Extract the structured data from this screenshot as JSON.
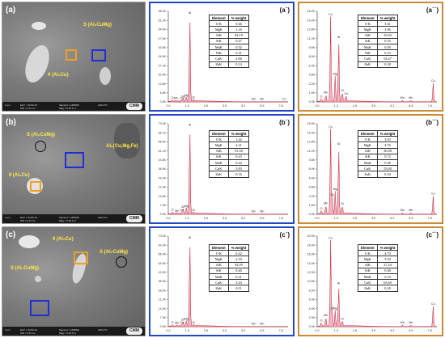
{
  "rows": [
    {
      "sem": {
        "label": "(a)",
        "annotations": [
          "S (Al₂CuMg)",
          "θ (Al₂Cu)"
        ],
        "footer": {
          "scale": "2 µm",
          "eht": "EHT = 20.00 kV",
          "wd": "WD = 9.5 mm",
          "signal": "Signal A = HDBSD",
          "mag": "Mag = 5.00 K X",
          "date": "2024-TS",
          "logo": "CMM"
        }
      },
      "spectrum_mid": {
        "label": "(a´)",
        "y_ticks": [
          "68.0K",
          "61.2K",
          "54.4K",
          "47.6K",
          "40.8K",
          "34.0K",
          "27.2K",
          "20.4K",
          "13.6K",
          "6.8K",
          "0.0K"
        ],
        "x_ticks": [
          "0.0",
          "1.3",
          "2.6",
          "3.9",
          "5.2",
          "6.5",
          "7.8"
        ],
        "peaks": [
          {
            "x": 0.28,
            "y": 1.2,
            "label": "O"
          },
          {
            "x": 0.52,
            "y": 0.8,
            "label": "Mn"
          },
          {
            "x": 0.93,
            "y": 0.9,
            "label": "Cu"
          },
          {
            "x": 1.04,
            "y": 2.0,
            "label": "Na"
          },
          {
            "x": 1.25,
            "y": 3.0,
            "label": "Mg"
          },
          {
            "x": 1.49,
            "y": 65.0,
            "label": "Al"
          },
          {
            "x": 1.74,
            "y": 1.5,
            "label": "Si"
          },
          {
            "x": 5.9,
            "y": 0.3,
            "label": "Mn"
          },
          {
            "x": 6.5,
            "y": 0.3,
            "label": "Mn"
          },
          {
            "x": 8.04,
            "y": 0.3,
            "label": "Cu"
          }
        ],
        "table": {
          "headers": [
            "Element",
            "% weight"
          ],
          "rows": [
            [
              "O K",
              "0.46"
            ],
            [
              "MgK",
              "1.16"
            ],
            [
              "AlK",
              "94.19"
            ],
            [
              "SiK",
              "0.47"
            ],
            [
              "MnK",
              "0.52"
            ],
            [
              "NiK",
              "0.21"
            ],
            [
              "CuK",
              "2.66"
            ],
            [
              "ZnK",
              "0.14"
            ]
          ]
        }
      },
      "spectrum_right": {
        "label": "(a´´)",
        "y_ticks": [
          "16.0K",
          "14.4K",
          "12.8K",
          "11.2K",
          "9.6K",
          "8.0K",
          "6.4K",
          "4.8K",
          "3.2K",
          "1.6K",
          "0.0K"
        ],
        "x_ticks": [
          "0.0",
          "1.3",
          "2.6",
          "3.9",
          "5.2",
          "6.5",
          "7.8"
        ],
        "peaks": [
          {
            "x": 0.28,
            "y": 0.5,
            "label": "O"
          },
          {
            "x": 0.6,
            "y": 1.2,
            "label": "Mn"
          },
          {
            "x": 0.93,
            "y": 15.0,
            "label": "Cu"
          },
          {
            "x": 1.25,
            "y": 4.5,
            "label": "Mg"
          },
          {
            "x": 1.49,
            "y": 11.0,
            "label": "Al"
          },
          {
            "x": 1.74,
            "y": 1.6,
            "label": "Si"
          },
          {
            "x": 2.0,
            "y": 1.0,
            "label": "Zn"
          },
          {
            "x": 5.9,
            "y": 0.3,
            "label": "Mn"
          },
          {
            "x": 6.5,
            "y": 0.3,
            "label": "Mn"
          },
          {
            "x": 8.04,
            "y": 3.3,
            "label": "Cu"
          }
        ],
        "table": {
          "headers": [
            "Element",
            "% weight"
          ],
          "rows": [
            [
              "O K",
              "3.61"
            ],
            [
              "MgK",
              "3.96"
            ],
            [
              "AlK",
              "35.03"
            ],
            [
              "SiK",
              "0.35"
            ],
            [
              "MnK",
              "0.09"
            ],
            [
              "NiK",
              "0.23"
            ],
            [
              "CuK",
              "54.47"
            ],
            [
              "ZnK",
              "0.28"
            ]
          ]
        }
      }
    },
    {
      "sem": {
        "label": "(b)",
        "annotations": [
          "S (Al₂CuMg)",
          "Al₆(Cu,Mg,Fe)",
          "θ (Al₂Cu)"
        ],
        "footer": {
          "scale": "2 µm",
          "eht": "EHT = 20.00 kV",
          "wd": "WD = 9.5 mm",
          "signal": "Signal A = HDBSD",
          "mag": "Mag = 5.00 K X",
          "date": "2024-TS",
          "logo": "CMM"
        }
      },
      "spectrum_mid": {
        "label": "(b´)",
        "y_ticks": [
          "73.0K",
          "65.7K",
          "58.4K",
          "51.1K",
          "43.8K",
          "36.5K",
          "29.2K",
          "21.9K",
          "14.6K",
          "7.3K",
          "0.0K"
        ],
        "x_ticks": [
          "0.0",
          "1.3",
          "2.6",
          "3.9",
          "5.2",
          "6.5",
          "7.8"
        ],
        "peaks": [
          {
            "x": 0.28,
            "y": 1.5,
            "label": "O"
          },
          {
            "x": 0.6,
            "y": 0.8,
            "label": "Mn"
          },
          {
            "x": 0.93,
            "y": 1.5,
            "label": "Cu"
          },
          {
            "x": 1.02,
            "y": 4.0,
            "label": "Zn"
          },
          {
            "x": 1.25,
            "y": 4.5,
            "label": "Mg"
          },
          {
            "x": 1.49,
            "y": 70.0,
            "label": "Al"
          },
          {
            "x": 1.74,
            "y": 1.3,
            "label": "Si"
          },
          {
            "x": 5.9,
            "y": 0.3,
            "label": "Mn"
          },
          {
            "x": 6.5,
            "y": 0.3,
            "label": "Mn"
          }
        ],
        "table": {
          "headers": [
            "Element",
            "% weight"
          ],
          "rows": [
            [
              "O K",
              "1.42"
            ],
            [
              "MgK",
              "2.21"
            ],
            [
              "AlK",
              "91.50"
            ],
            [
              "SiK",
              "0.43"
            ],
            [
              "MnK",
              "0.44"
            ],
            [
              "CuK",
              "3.83"
            ],
            [
              "ZnK",
              "0.16"
            ]
          ]
        }
      },
      "spectrum_right": {
        "label": "(b´´)",
        "y_ticks": [
          "16.0K",
          "14.4K",
          "12.8K",
          "11.2K",
          "9.6K",
          "8.0K",
          "6.4K",
          "4.8K",
          "3.2K",
          "1.6K",
          "0.0K"
        ],
        "x_ticks": [
          "0.0",
          "1.3",
          "2.6",
          "3.9",
          "5.2",
          "6.5",
          "7.8"
        ],
        "peaks": [
          {
            "x": 0.28,
            "y": 0.6,
            "label": "O"
          },
          {
            "x": 0.6,
            "y": 1.5,
            "label": "Mn"
          },
          {
            "x": 0.93,
            "y": 15.0,
            "label": "Cu"
          },
          {
            "x": 1.04,
            "y": 3.0,
            "label": "Zn"
          },
          {
            "x": 1.25,
            "y": 4.0,
            "label": "Mg"
          },
          {
            "x": 1.49,
            "y": 12.0,
            "label": "Al"
          },
          {
            "x": 1.74,
            "y": 1.4,
            "label": "Si"
          },
          {
            "x": 5.9,
            "y": 0.3,
            "label": "Mn"
          },
          {
            "x": 6.5,
            "y": 0.3,
            "label": "Mn"
          },
          {
            "x": 8.04,
            "y": 3.2,
            "label": "Cu"
          }
        ],
        "table": {
          "headers": [
            "Element",
            "% weight"
          ],
          "rows": [
            [
              "O K",
              "3.93"
            ],
            [
              "MgK",
              "4.76"
            ],
            [
              "AlK",
              "36.98"
            ],
            [
              "SiK",
              "0.72"
            ],
            [
              "MnK",
              "0.28"
            ],
            [
              "CuK",
              "53.00"
            ],
            [
              "ZnK",
              "0.34"
            ]
          ]
        }
      }
    },
    {
      "sem": {
        "label": "(c)",
        "annotations": [
          "θ (Al₂Cu)",
          "S (Al₂CuMg)",
          "S (Al₂CuMg)"
        ],
        "footer": {
          "scale": "2 µm",
          "eht": "EHT = 20.00 kV",
          "wd": "WD = 9.5 mm",
          "signal": "Signal A = HDBSD",
          "mag": "Mag = 5.00 K X",
          "date": "2024-TS",
          "logo": "CMM"
        }
      },
      "spectrum_mid": {
        "label": "(c´)",
        "y_ticks": [
          "70.0K",
          "63.0K",
          "56.0K",
          "49.0K",
          "42.0K",
          "35.0K",
          "28.0K",
          "21.0K",
          "14.0K",
          "7.0K",
          "0.0K"
        ],
        "x_ticks": [
          "0.0",
          "1.3",
          "2.6",
          "3.9",
          "5.2",
          "6.5",
          "7.8"
        ],
        "peaks": [
          {
            "x": 0.28,
            "y": 1.2,
            "label": "O"
          },
          {
            "x": 0.6,
            "y": 0.8,
            "label": "Mn"
          },
          {
            "x": 0.93,
            "y": 1.2,
            "label": "Cu"
          },
          {
            "x": 1.02,
            "y": 3.5,
            "label": "Zn"
          },
          {
            "x": 1.25,
            "y": 4.0,
            "label": "Mg"
          },
          {
            "x": 1.49,
            "y": 67.0,
            "label": "Al"
          },
          {
            "x": 1.74,
            "y": 1.2,
            "label": "Si"
          },
          {
            "x": 5.9,
            "y": 0.3,
            "label": "Mn"
          },
          {
            "x": 6.5,
            "y": 0.3,
            "label": "Mn"
          }
        ],
        "table": {
          "headers": [
            "Element",
            "% weight"
          ],
          "rows": [
            [
              "O K",
              "0.42"
            ],
            [
              "MgK",
              "2.19"
            ],
            [
              "AlK",
              "92.95"
            ],
            [
              "SiK",
              "0.40"
            ],
            [
              "MnK",
              "0.41"
            ],
            [
              "CuK",
              "3.43"
            ],
            [
              "ZnK",
              "0.11"
            ]
          ]
        }
      },
      "spectrum_right": {
        "label": "(c´´)",
        "y_ticks": [
          "20.0K",
          "18.0K",
          "16.0K",
          "14.0K",
          "12.0K",
          "10.0K",
          "8.0K",
          "6.0K",
          "4.0K",
          "2.0K",
          "0.0K"
        ],
        "x_ticks": [
          "0.0",
          "1.3",
          "2.6",
          "3.9",
          "5.2",
          "6.5",
          "7.8"
        ],
        "peaks": [
          {
            "x": 0.28,
            "y": 0.8,
            "label": "O"
          },
          {
            "x": 0.6,
            "y": 2.0,
            "label": "Mn"
          },
          {
            "x": 0.93,
            "y": 19.0,
            "label": "Cu"
          },
          {
            "x": 1.04,
            "y": 3.5,
            "label": "Zn"
          },
          {
            "x": 1.25,
            "y": 3.5,
            "label": "Mg"
          },
          {
            "x": 1.49,
            "y": 9.0,
            "label": "Al"
          },
          {
            "x": 1.74,
            "y": 1.2,
            "label": "Si"
          },
          {
            "x": 5.9,
            "y": 0.4,
            "label": "Mn"
          },
          {
            "x": 6.5,
            "y": 0.4,
            "label": "Mn"
          },
          {
            "x": 8.04,
            "y": 4.5,
            "label": "Cu"
          }
        ],
        "table": {
          "headers": [
            "Element",
            "% weight"
          ],
          "rows": [
            [
              "O K",
              "4.70"
            ],
            [
              "MgK",
              "3.59"
            ],
            [
              "AlK",
              "27.24"
            ],
            [
              "SiK",
              "0.48"
            ],
            [
              "MnK",
              "0.10"
            ],
            [
              "CuK",
              "63.69"
            ],
            [
              "ZnK",
              "0.20"
            ]
          ]
        }
      }
    }
  ],
  "colors": {
    "blue_frame": "#2345c8",
    "orange_frame": "#c98b3a",
    "spectrum_fill": "#f2b8c6",
    "spectrum_line": "#c0182c"
  }
}
